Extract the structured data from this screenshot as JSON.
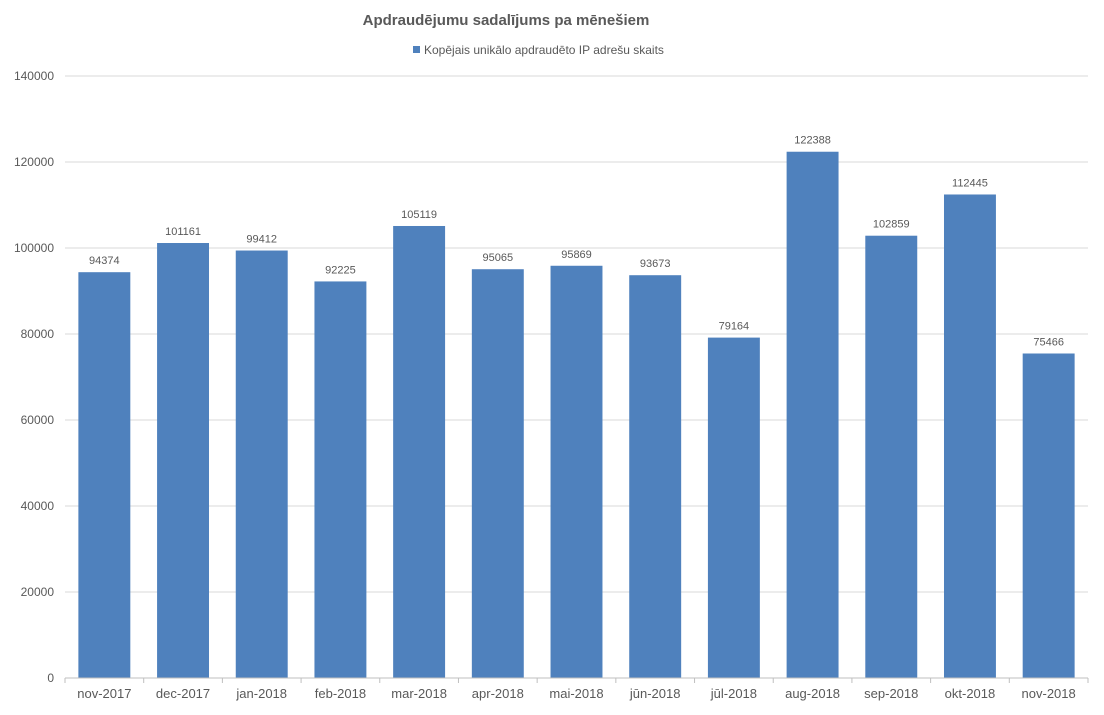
{
  "chart_data": {
    "type": "bar",
    "title": "Apdraudējumu sadalījums pa mēnešiem",
    "xlabel": "",
    "ylabel": "",
    "categories": [
      "nov-2017",
      "dec-2017",
      "jan-2018",
      "feb-2018",
      "mar-2018",
      "apr-2018",
      "mai-2018",
      "jūn-2018",
      "jūl-2018",
      "aug-2018",
      "sep-2018",
      "okt-2018",
      "nov-2018"
    ],
    "series": [
      {
        "name": "Kopējais unikālo apdraudēto IP adrešu skaits",
        "values": [
          94374,
          101161,
          99412,
          92225,
          105119,
          95065,
          95869,
          93673,
          79164,
          122388,
          102859,
          112445,
          75466
        ],
        "color": "#4f81bd"
      }
    ],
    "data_labels": [
      "94374",
      "101161",
      "99412",
      "92225",
      "105119",
      "95065",
      "95869",
      "93673",
      "79164",
      "122388",
      "102859",
      "112445",
      "75466"
    ],
    "ylim": [
      0,
      140000
    ],
    "yticks": [
      "0",
      "20000",
      "40000",
      "60000",
      "80000",
      "100000",
      "120000",
      "140000"
    ],
    "ytick_values": [
      0,
      20000,
      40000,
      60000,
      80000,
      100000,
      120000,
      140000
    ],
    "grid": true,
    "legend_position": "top-center",
    "colors": {
      "bar": "#4f81bd",
      "grid": "#d9d9d9",
      "axis": "#bfbfbf",
      "text": "#595959",
      "title": "#595959"
    }
  }
}
